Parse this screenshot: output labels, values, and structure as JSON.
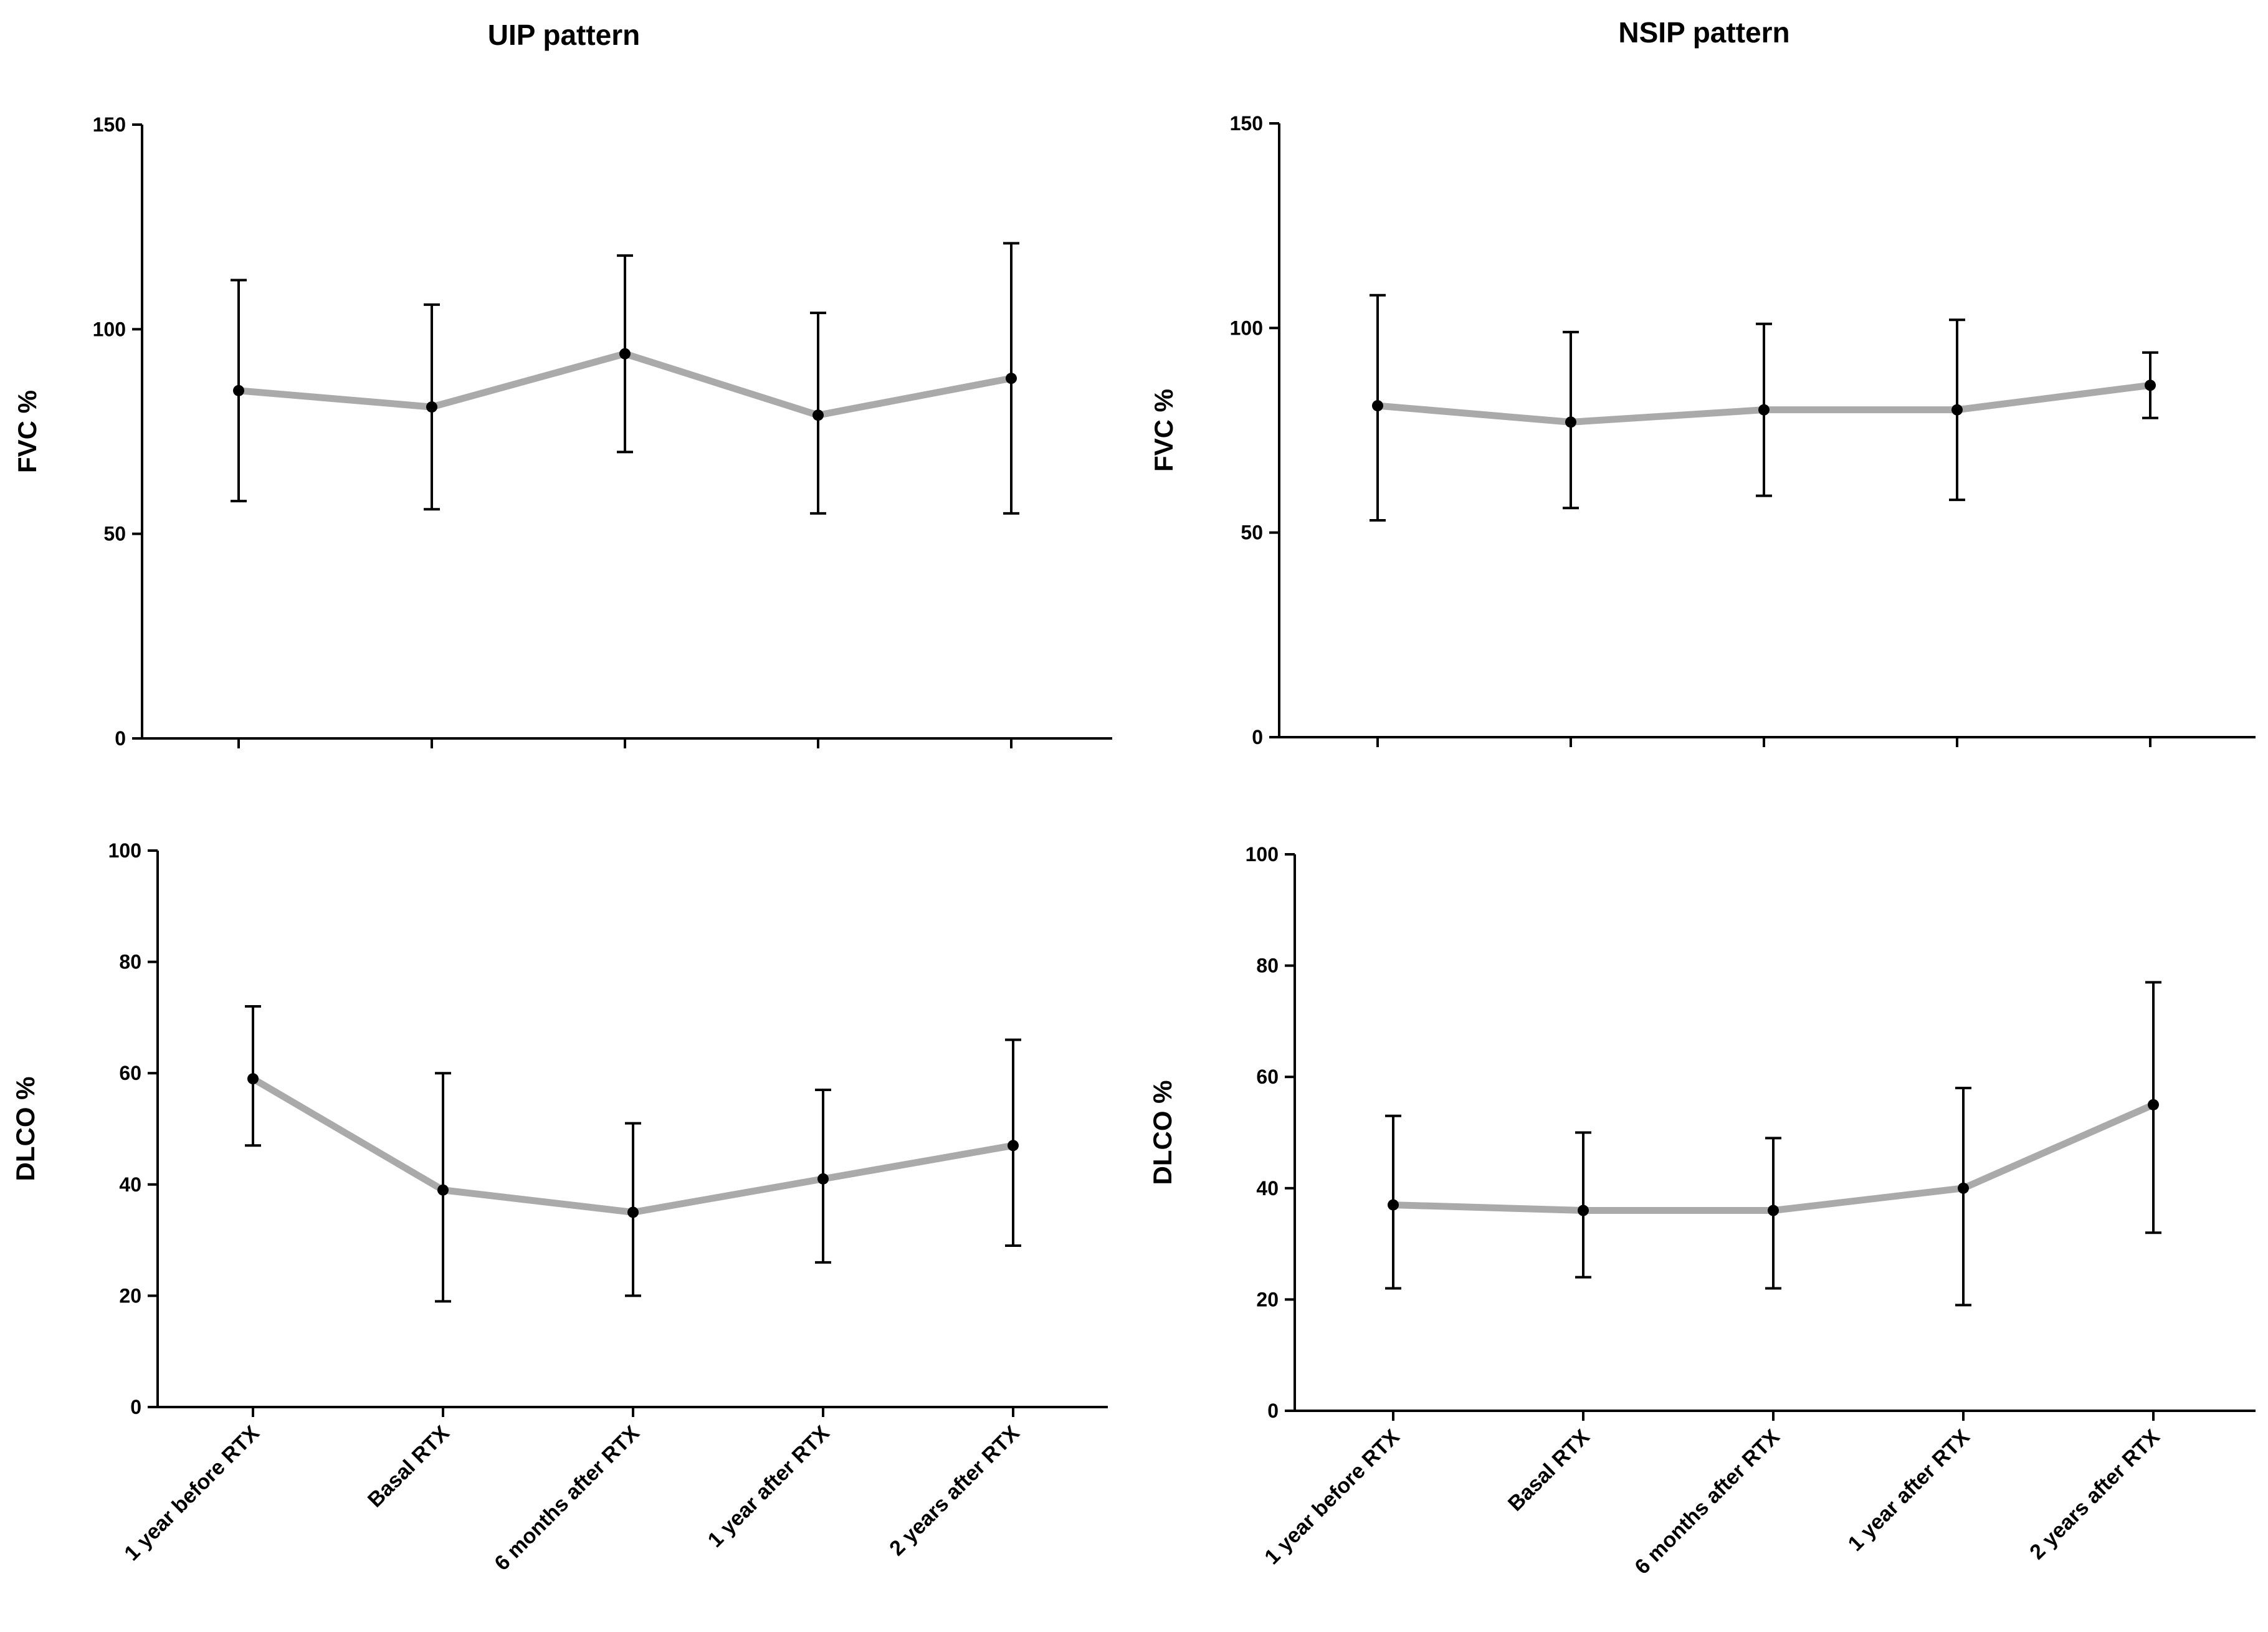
{
  "figure": {
    "column_titles": [
      "UIP pattern",
      "NSIP pattern"
    ]
  },
  "chart_data": [
    {
      "id": "uip-fvc",
      "type": "line",
      "title": "UIP pattern",
      "ylabel": "FVC %",
      "xlabel": "",
      "ylim": [
        0,
        150
      ],
      "yticks": [
        0,
        50,
        100,
        150
      ],
      "categories": [
        "1 year before RTX",
        "Basal RTX",
        "6 months after RTX",
        "1 year after RTX",
        "2 years after RTX"
      ],
      "show_category_labels": false,
      "series": [
        {
          "name": "FVC %",
          "color": "#aaaaaa",
          "values": [
            85,
            81,
            94,
            79,
            88
          ],
          "err_low": [
            58,
            56,
            70,
            55,
            55
          ],
          "err_high": [
            112,
            106,
            118,
            104,
            121
          ]
        }
      ]
    },
    {
      "id": "nsip-fvc",
      "type": "line",
      "title": "NSIP pattern",
      "ylabel": "FVC %",
      "xlabel": "",
      "ylim": [
        0,
        150
      ],
      "yticks": [
        0,
        50,
        100,
        150
      ],
      "categories": [
        "1 year before RTX",
        "Basal RTX",
        "6 months after RTX",
        "1 year after RTX",
        "2 years after RTX"
      ],
      "show_category_labels": false,
      "series": [
        {
          "name": "FVC %",
          "color": "#aaaaaa",
          "values": [
            81,
            77,
            80,
            80,
            86
          ],
          "err_low": [
            53,
            56,
            59,
            58,
            78
          ],
          "err_high": [
            108,
            99,
            101,
            102,
            94
          ]
        }
      ]
    },
    {
      "id": "uip-dlco",
      "type": "line",
      "title": "",
      "ylabel": "DLCO %",
      "xlabel": "",
      "ylim": [
        0,
        100
      ],
      "yticks": [
        0,
        20,
        40,
        60,
        80,
        100
      ],
      "categories": [
        "1 year before RTX",
        "Basal RTX",
        "6 months after RTX",
        "1 year after RTX",
        "2 years after RTX"
      ],
      "show_category_labels": true,
      "series": [
        {
          "name": "DLCO %",
          "color": "#aaaaaa",
          "values": [
            59,
            39,
            35,
            41,
            47
          ],
          "err_low": [
            47,
            19,
            20,
            26,
            29
          ],
          "err_high": [
            72,
            60,
            51,
            57,
            66
          ]
        }
      ]
    },
    {
      "id": "nsip-dlco",
      "type": "line",
      "title": "",
      "ylabel": "DLCO %",
      "xlabel": "",
      "ylim": [
        0,
        100
      ],
      "yticks": [
        0,
        20,
        40,
        60,
        80,
        100
      ],
      "categories": [
        "1 year before RTX",
        "Basal RTX",
        "6 months after RTX",
        "1 year after RTX",
        "2 years after RTX"
      ],
      "show_category_labels": true,
      "series": [
        {
          "name": "DLCO %",
          "color": "#aaaaaa",
          "values": [
            37,
            36,
            36,
            40,
            55
          ],
          "err_low": [
            22,
            24,
            22,
            19,
            32
          ],
          "err_high": [
            53,
            50,
            49,
            58,
            77
          ]
        }
      ]
    }
  ]
}
